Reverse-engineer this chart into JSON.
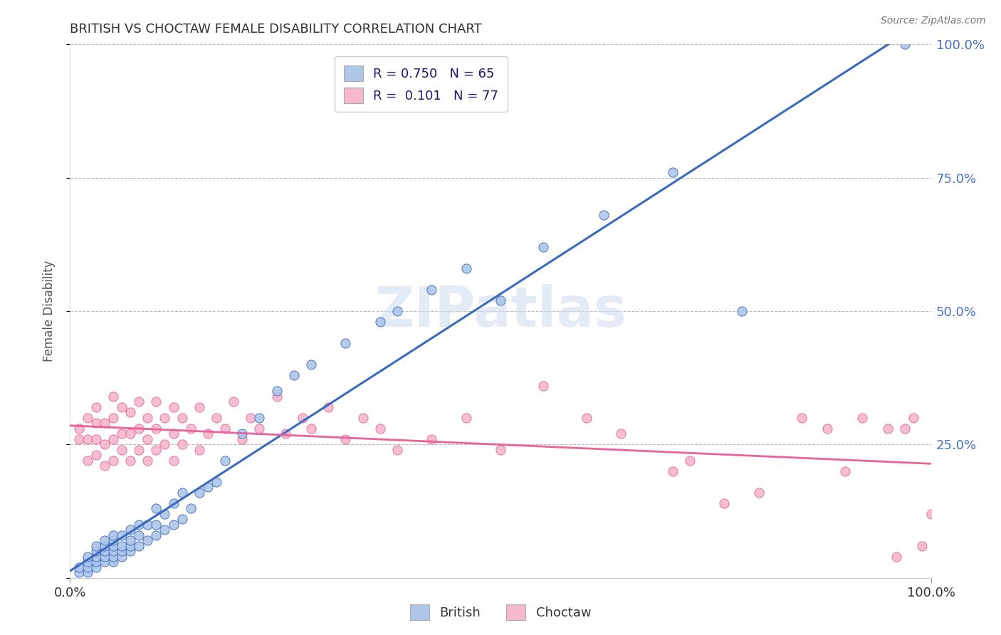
{
  "title": "BRITISH VS CHOCTAW FEMALE DISABILITY CORRELATION CHART",
  "source": "Source: ZipAtlas.com",
  "ylabel": "Female Disability",
  "british_R": 0.75,
  "british_N": 65,
  "choctaw_R": 0.101,
  "choctaw_N": 77,
  "british_color": "#aec6e8",
  "choctaw_color": "#f5b8cc",
  "british_line_color": "#3a6bbf",
  "choctaw_line_color": "#e8639a",
  "watermark": "ZIPatlas",
  "british_scatter_x": [
    0.01,
    0.01,
    0.02,
    0.02,
    0.02,
    0.02,
    0.03,
    0.03,
    0.03,
    0.03,
    0.03,
    0.04,
    0.04,
    0.04,
    0.04,
    0.04,
    0.05,
    0.05,
    0.05,
    0.05,
    0.05,
    0.05,
    0.06,
    0.06,
    0.06,
    0.06,
    0.07,
    0.07,
    0.07,
    0.07,
    0.08,
    0.08,
    0.08,
    0.09,
    0.09,
    0.1,
    0.1,
    0.1,
    0.11,
    0.11,
    0.12,
    0.12,
    0.13,
    0.13,
    0.14,
    0.15,
    0.16,
    0.17,
    0.18,
    0.2,
    0.22,
    0.24,
    0.26,
    0.28,
    0.32,
    0.36,
    0.38,
    0.42,
    0.46,
    0.5,
    0.55,
    0.62,
    0.7,
    0.78,
    0.97
  ],
  "british_scatter_y": [
    0.01,
    0.02,
    0.01,
    0.02,
    0.03,
    0.04,
    0.02,
    0.03,
    0.04,
    0.05,
    0.06,
    0.03,
    0.04,
    0.05,
    0.06,
    0.07,
    0.03,
    0.04,
    0.05,
    0.06,
    0.07,
    0.08,
    0.04,
    0.05,
    0.06,
    0.08,
    0.05,
    0.06,
    0.07,
    0.09,
    0.06,
    0.08,
    0.1,
    0.07,
    0.1,
    0.08,
    0.1,
    0.13,
    0.09,
    0.12,
    0.1,
    0.14,
    0.11,
    0.16,
    0.13,
    0.16,
    0.17,
    0.18,
    0.22,
    0.27,
    0.3,
    0.35,
    0.38,
    0.4,
    0.44,
    0.48,
    0.5,
    0.54,
    0.58,
    0.52,
    0.62,
    0.68,
    0.76,
    0.5,
    1.0
  ],
  "choctaw_scatter_x": [
    0.01,
    0.01,
    0.02,
    0.02,
    0.02,
    0.03,
    0.03,
    0.03,
    0.03,
    0.04,
    0.04,
    0.04,
    0.05,
    0.05,
    0.05,
    0.05,
    0.06,
    0.06,
    0.06,
    0.07,
    0.07,
    0.07,
    0.08,
    0.08,
    0.08,
    0.09,
    0.09,
    0.09,
    0.1,
    0.1,
    0.1,
    0.11,
    0.11,
    0.12,
    0.12,
    0.12,
    0.13,
    0.13,
    0.14,
    0.15,
    0.15,
    0.16,
    0.17,
    0.18,
    0.19,
    0.2,
    0.21,
    0.22,
    0.24,
    0.25,
    0.27,
    0.28,
    0.3,
    0.32,
    0.34,
    0.36,
    0.38,
    0.42,
    0.46,
    0.5,
    0.55,
    0.6,
    0.64,
    0.7,
    0.72,
    0.76,
    0.8,
    0.85,
    0.88,
    0.9,
    0.92,
    0.95,
    0.96,
    0.97,
    0.98,
    0.99,
    1.0
  ],
  "choctaw_scatter_y": [
    0.26,
    0.28,
    0.22,
    0.26,
    0.3,
    0.23,
    0.26,
    0.29,
    0.32,
    0.21,
    0.25,
    0.29,
    0.22,
    0.26,
    0.3,
    0.34,
    0.24,
    0.27,
    0.32,
    0.22,
    0.27,
    0.31,
    0.24,
    0.28,
    0.33,
    0.22,
    0.26,
    0.3,
    0.24,
    0.28,
    0.33,
    0.25,
    0.3,
    0.22,
    0.27,
    0.32,
    0.25,
    0.3,
    0.28,
    0.24,
    0.32,
    0.27,
    0.3,
    0.28,
    0.33,
    0.26,
    0.3,
    0.28,
    0.34,
    0.27,
    0.3,
    0.28,
    0.32,
    0.26,
    0.3,
    0.28,
    0.24,
    0.26,
    0.3,
    0.24,
    0.36,
    0.3,
    0.27,
    0.2,
    0.22,
    0.14,
    0.16,
    0.3,
    0.28,
    0.2,
    0.3,
    0.28,
    0.04,
    0.28,
    0.3,
    0.06,
    0.12
  ]
}
